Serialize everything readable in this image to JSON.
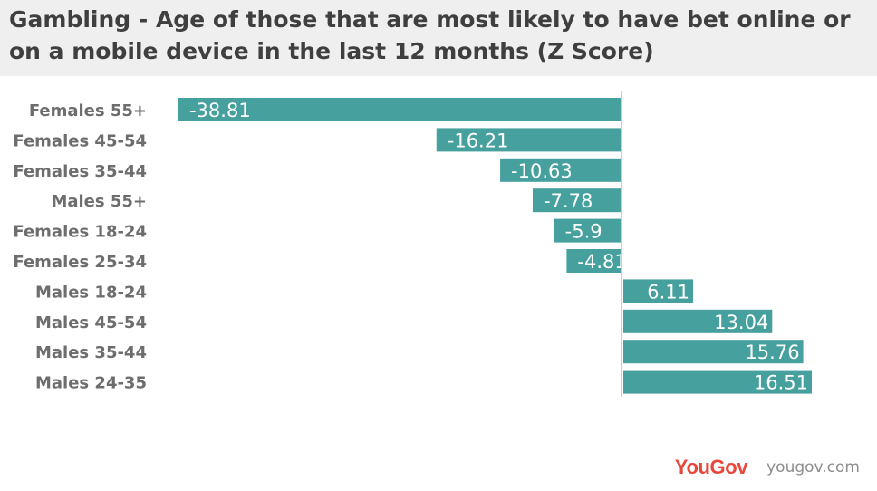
{
  "header": {
    "title": "Gambling - Age of those that are most likely to have bet online or on a mobile device in the last 12 months (Z Score)"
  },
  "chart_data": {
    "type": "bar",
    "orientation": "horizontal",
    "categories": [
      "Females 55+",
      "Females 45-54",
      "Females 35-44",
      "Males 55+",
      "Females 18-24",
      "Females 25-34",
      "Males 18-24",
      "Males 45-54",
      "Males 35-44",
      "Males 24-35"
    ],
    "values": [
      -38.81,
      -16.21,
      -10.63,
      -7.78,
      -5.9,
      -4.81,
      6.11,
      13.04,
      15.76,
      16.51
    ],
    "value_labels": [
      "-38.81",
      "-16.21",
      "-10.63",
      "-7.78",
      "-5.9",
      "-4.81",
      "6.11",
      "13.04",
      "15.76",
      "16.51"
    ],
    "xlim": [
      -40,
      17
    ],
    "grid": false,
    "legend": "none",
    "bar_color": "#46a09e",
    "label_color": "#ffffff",
    "category_label_color": "#6d6d6d",
    "axis_color": "#cccccc"
  },
  "footer": {
    "brand": "YouGov",
    "brand_color": "#e8483b",
    "site": "yougov.com"
  }
}
